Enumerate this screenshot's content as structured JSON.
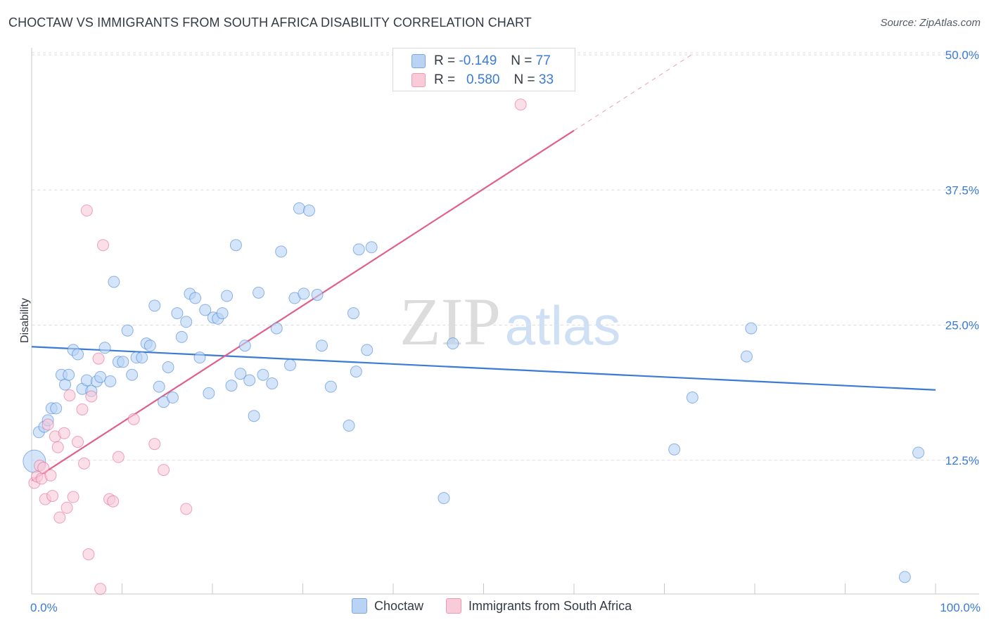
{
  "header": {
    "title": "CHOCTAW VS IMMIGRANTS FROM SOUTH AFRICA DISABILITY CORRELATION CHART",
    "source": "Source: ZipAtlas.com"
  },
  "watermark": {
    "zip": "ZIP",
    "atlas": "atlas"
  },
  "legend_top": [
    {
      "r_label": "R =",
      "r_value": "-0.149",
      "n_label": "N =",
      "n_value": "77",
      "color": "#3a7bd5"
    },
    {
      "r_label": "R =",
      "r_value": "0.580",
      "n_label": "N =",
      "n_value": "33",
      "color": "#e0608a"
    }
  ],
  "legend_bottom": [
    {
      "label": "Choctaw",
      "color": "#b9d3f5"
    },
    {
      "label": "Immigrants from South Africa",
      "color": "#f9cad8"
    }
  ],
  "chart_data": {
    "type": "scatter",
    "title": "CHOCTAW VS IMMIGRANTS FROM SOUTH AFRICA DISABILITY CORRELATION CHART",
    "xlabel": "",
    "ylabel": "Disability",
    "xlim": [
      0,
      100
    ],
    "ylim": [
      0,
      50
    ],
    "x_tick_labels": [
      {
        "value": 0,
        "label": "0.0%"
      },
      {
        "value": 100,
        "label": "100.0%"
      }
    ],
    "y_tick_labels": [
      {
        "value": 12.5,
        "label": "12.5%"
      },
      {
        "value": 25.0,
        "label": "25.0%"
      },
      {
        "value": 37.5,
        "label": "37.5%"
      },
      {
        "value": 50.0,
        "label": "50.0%"
      }
    ],
    "grid": true,
    "series": [
      {
        "name": "Choctaw",
        "color": "#3a7bd5",
        "fill": "#b9d3f5",
        "points": [
          [
            0.3,
            12.4
          ],
          [
            0.8,
            15.1
          ],
          [
            1.4,
            15.6
          ],
          [
            1.8,
            16.2
          ],
          [
            2.2,
            17.3
          ],
          [
            2.7,
            17.3
          ],
          [
            3.3,
            20.4
          ],
          [
            3.7,
            19.5
          ],
          [
            4.1,
            20.4
          ],
          [
            4.6,
            22.7
          ],
          [
            5.1,
            22.3
          ],
          [
            5.6,
            19.1
          ],
          [
            6.1,
            19.9
          ],
          [
            6.6,
            18.9
          ],
          [
            7.2,
            19.8
          ],
          [
            7.6,
            20.2
          ],
          [
            8.1,
            22.9
          ],
          [
            8.7,
            19.8
          ],
          [
            9.1,
            29.0
          ],
          [
            9.6,
            21.6
          ],
          [
            10.1,
            21.6
          ],
          [
            10.6,
            24.5
          ],
          [
            11.1,
            20.4
          ],
          [
            11.6,
            22.0
          ],
          [
            12.2,
            22.0
          ],
          [
            12.7,
            23.3
          ],
          [
            13.1,
            23.1
          ],
          [
            13.6,
            26.8
          ],
          [
            14.1,
            19.3
          ],
          [
            14.6,
            17.9
          ],
          [
            15.1,
            21.1
          ],
          [
            15.6,
            18.3
          ],
          [
            16.1,
            26.1
          ],
          [
            16.6,
            23.9
          ],
          [
            17.1,
            25.3
          ],
          [
            17.5,
            27.9
          ],
          [
            18.1,
            27.5
          ],
          [
            18.6,
            22.0
          ],
          [
            19.2,
            26.4
          ],
          [
            19.6,
            18.7
          ],
          [
            20.1,
            25.7
          ],
          [
            20.6,
            25.6
          ],
          [
            21.1,
            26.1
          ],
          [
            21.6,
            27.7
          ],
          [
            22.1,
            19.4
          ],
          [
            22.6,
            32.4
          ],
          [
            23.1,
            20.5
          ],
          [
            23.6,
            23.1
          ],
          [
            24.1,
            19.9
          ],
          [
            24.6,
            16.6
          ],
          [
            25.1,
            28.0
          ],
          [
            25.6,
            20.4
          ],
          [
            26.6,
            19.6
          ],
          [
            27.1,
            24.7
          ],
          [
            27.6,
            31.8
          ],
          [
            28.6,
            21.3
          ],
          [
            29.1,
            27.5
          ],
          [
            29.6,
            35.8
          ],
          [
            30.1,
            27.9
          ],
          [
            30.7,
            35.6
          ],
          [
            31.6,
            27.8
          ],
          [
            32.1,
            23.1
          ],
          [
            33.1,
            19.3
          ],
          [
            35.1,
            15.7
          ],
          [
            35.6,
            26.1
          ],
          [
            35.9,
            20.7
          ],
          [
            36.2,
            32.0
          ],
          [
            37.1,
            22.7
          ],
          [
            37.6,
            32.2
          ],
          [
            45.6,
            9.0
          ],
          [
            46.6,
            23.3
          ],
          [
            71.1,
            13.5
          ],
          [
            73.1,
            18.3
          ],
          [
            79.1,
            22.1
          ],
          [
            79.6,
            24.7
          ],
          [
            98.1,
            13.2
          ],
          [
            96.6,
            1.7
          ]
        ]
      },
      {
        "name": "Immigrants from South Africa",
        "color": "#e0608a",
        "fill": "#f9cad8",
        "points": [
          [
            0.3,
            10.4
          ],
          [
            0.6,
            11.0
          ],
          [
            0.9,
            12.0
          ],
          [
            1.1,
            10.8
          ],
          [
            1.3,
            11.8
          ],
          [
            1.5,
            8.9
          ],
          [
            1.8,
            15.8
          ],
          [
            2.1,
            11.1
          ],
          [
            2.3,
            9.2
          ],
          [
            2.6,
            14.7
          ],
          [
            2.9,
            13.7
          ],
          [
            3.1,
            7.2
          ],
          [
            3.6,
            15.0
          ],
          [
            3.9,
            8.1
          ],
          [
            4.2,
            18.5
          ],
          [
            4.6,
            9.1
          ],
          [
            5.1,
            14.2
          ],
          [
            5.6,
            17.2
          ],
          [
            5.8,
            12.2
          ],
          [
            6.1,
            35.6
          ],
          [
            6.3,
            3.8
          ],
          [
            6.6,
            18.4
          ],
          [
            7.4,
            21.9
          ],
          [
            7.6,
            0.6
          ],
          [
            7.9,
            32.4
          ],
          [
            8.6,
            8.9
          ],
          [
            9.0,
            8.7
          ],
          [
            9.6,
            12.8
          ],
          [
            11.3,
            16.3
          ],
          [
            13.6,
            14.0
          ],
          [
            14.6,
            11.6
          ],
          [
            17.1,
            8.0
          ],
          [
            54.1,
            45.4
          ]
        ]
      }
    ],
    "trend_lines": [
      {
        "series": "Choctaw",
        "x": [
          0,
          100
        ],
        "y": [
          23.0,
          19.0
        ],
        "style": "solid"
      },
      {
        "series": "Immigrants from South Africa",
        "x": [
          0,
          60
        ],
        "y": [
          10.6,
          43.0
        ],
        "style": "solid"
      },
      {
        "series": "Immigrants from South Africa",
        "x": [
          60,
          73
        ],
        "y": [
          43.0,
          50.0
        ],
        "style": "dashed"
      }
    ]
  }
}
